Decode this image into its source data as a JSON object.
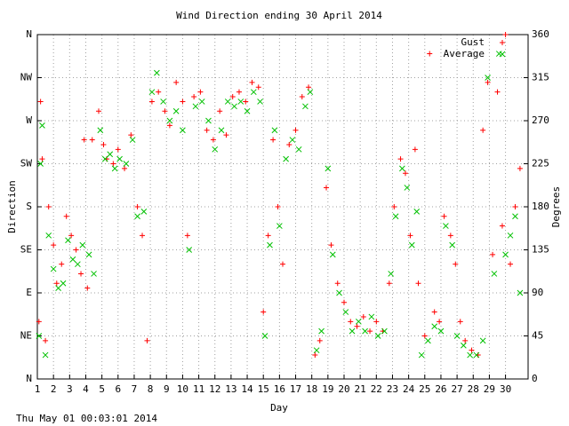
{
  "chart_data": {
    "type": "scatter",
    "title": "Wind Direction ending 30 April 2014",
    "x_label": "Day",
    "y_label": "Direction",
    "y2_label": "Degrees",
    "footer": "Thu May 01 00:03:01 2014",
    "xlim": [
      1,
      31.4
    ],
    "xticks": [
      1,
      2,
      3,
      4,
      5,
      6,
      7,
      8,
      9,
      10,
      11,
      12,
      13,
      14,
      15,
      16,
      17,
      18,
      19,
      20,
      21,
      22,
      23,
      24,
      25,
      26,
      27,
      28,
      29,
      30
    ],
    "ylim": [
      0,
      360
    ],
    "yticks": [
      {
        "value": 0,
        "label": "N"
      },
      {
        "value": 45,
        "label": "NE"
      },
      {
        "value": 90,
        "label": "E"
      },
      {
        "value": 135,
        "label": "SE"
      },
      {
        "value": 180,
        "label": "S"
      },
      {
        "value": 225,
        "label": "SW"
      },
      {
        "value": 270,
        "label": "W"
      },
      {
        "value": 315,
        "label": "NW"
      },
      {
        "value": 360,
        "label": "N"
      }
    ],
    "y2lim": [
      0,
      360
    ],
    "y2ticks": [
      0,
      45,
      90,
      135,
      180,
      225,
      270,
      315,
      360
    ],
    "grid": true,
    "legend": "top-right",
    "series": [
      {
        "name": "Gust",
        "color": "#ff0000",
        "marker": "+",
        "x": [
          1.1,
          1.2,
          1.3,
          1.5,
          1.7,
          2.0,
          2.2,
          2.5,
          2.8,
          3.1,
          3.4,
          3.7,
          3.9,
          4.1,
          4.4,
          4.8,
          5.1,
          5.3,
          5.7,
          6.0,
          6.4,
          6.8,
          7.2,
          7.5,
          7.8,
          8.1,
          8.5,
          8.9,
          9.2,
          9.6,
          10.0,
          10.3,
          10.7,
          11.1,
          11.5,
          11.9,
          12.3,
          12.7,
          13.1,
          13.5,
          13.9,
          14.3,
          14.7,
          15.0,
          15.3,
          15.6,
          15.9,
          16.2,
          16.6,
          17.0,
          17.4,
          17.8,
          18.2,
          18.5,
          18.9,
          19.2,
          19.6,
          20.0,
          20.4,
          20.8,
          21.2,
          21.6,
          22.0,
          22.4,
          22.8,
          23.1,
          23.5,
          23.8,
          24.1,
          24.4,
          24.6,
          25.0,
          25.3,
          25.6,
          25.9,
          26.2,
          26.6,
          26.9,
          27.2,
          27.5,
          27.9,
          28.3,
          28.6,
          28.9,
          29.2,
          29.5,
          29.8,
          30.0,
          30.3,
          30.6,
          30.9
        ],
        "values": [
          60,
          290,
          230,
          40,
          180,
          140,
          100,
          120,
          170,
          150,
          135,
          110,
          250,
          95,
          250,
          280,
          245,
          230,
          225,
          240,
          220,
          255,
          180,
          150,
          40,
          290,
          300,
          280,
          265,
          310,
          290,
          150,
          295,
          300,
          260,
          250,
          280,
          255,
          295,
          300,
          290,
          310,
          305,
          70,
          150,
          250,
          180,
          120,
          245,
          260,
          295,
          305,
          25,
          40,
          200,
          140,
          100,
          80,
          60,
          55,
          65,
          50,
          60,
          50,
          100,
          180,
          230,
          215,
          150,
          240,
          100,
          45,
          340,
          70,
          60,
          170,
          150,
          120,
          60,
          40,
          30,
          25,
          260,
          310,
          130,
          300,
          160,
          360,
          120,
          180,
          220
        ]
      },
      {
        "name": "Average",
        "color": "#00c000",
        "marker": "x",
        "x": [
          1.1,
          1.2,
          1.3,
          1.5,
          1.7,
          2.0,
          2.3,
          2.6,
          2.9,
          3.2,
          3.5,
          3.8,
          4.2,
          4.5,
          4.9,
          5.2,
          5.5,
          5.8,
          6.1,
          6.5,
          6.9,
          7.2,
          7.6,
          8.1,
          8.4,
          8.8,
          9.2,
          9.6,
          10.0,
          10.4,
          10.8,
          11.2,
          11.6,
          12.0,
          12.4,
          12.8,
          13.2,
          13.6,
          14.0,
          14.4,
          14.8,
          15.1,
          15.4,
          15.7,
          16.0,
          16.4,
          16.8,
          17.2,
          17.6,
          17.9,
          18.3,
          18.6,
          19.0,
          19.3,
          19.7,
          20.1,
          20.5,
          20.9,
          21.3,
          21.7,
          22.1,
          22.5,
          22.9,
          23.2,
          23.6,
          23.9,
          24.2,
          24.5,
          24.8,
          25.2,
          25.6,
          26.0,
          26.3,
          26.7,
          27.0,
          27.4,
          27.8,
          28.2,
          28.6,
          28.9,
          29.3,
          29.6,
          30.0,
          30.3,
          30.6,
          30.9
        ],
        "values": [
          45,
          225,
          265,
          25,
          150,
          115,
          95,
          100,
          145,
          125,
          120,
          140,
          130,
          110,
          260,
          230,
          235,
          220,
          230,
          225,
          250,
          170,
          175,
          300,
          320,
          290,
          270,
          280,
          260,
          135,
          285,
          290,
          270,
          240,
          260,
          290,
          285,
          290,
          280,
          300,
          290,
          45,
          140,
          260,
          160,
          230,
          250,
          240,
          285,
          300,
          30,
          50,
          220,
          130,
          90,
          70,
          50,
          60,
          50,
          65,
          45,
          50,
          110,
          170,
          220,
          200,
          140,
          175,
          25,
          40,
          55,
          50,
          160,
          140,
          45,
          35,
          25,
          25,
          40,
          315,
          110,
          340,
          130,
          150,
          170,
          90
        ]
      }
    ]
  }
}
